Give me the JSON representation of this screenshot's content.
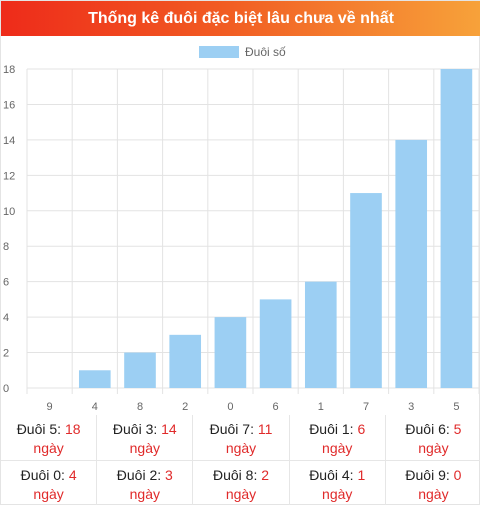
{
  "header": {
    "title": "Thống kê đuôi đặc biệt lâu chưa về nhất"
  },
  "colors": {
    "bar": "#9ccff3",
    "accent": "#e02a2a",
    "header_start": "#ee2b1a",
    "header_end": "#f7a23a"
  },
  "chart_data": {
    "type": "bar",
    "title": "",
    "categories": [
      "9",
      "4",
      "8",
      "2",
      "0",
      "6",
      "1",
      "7",
      "3",
      "5"
    ],
    "series": [
      {
        "name": "Đuôi số",
        "values": [
          0,
          1,
          2,
          3,
          4,
          5,
          6,
          11,
          14,
          18
        ]
      }
    ],
    "ylim": [
      0,
      18
    ],
    "yticks": [
      "0",
      "2",
      "4",
      "6",
      "8",
      "10",
      "12",
      "14",
      "16",
      "18"
    ],
    "grid": true,
    "legend": "top-center"
  },
  "stats": {
    "unit": "ngày",
    "rows": [
      [
        {
          "label": "Đuôi 5:",
          "value": "18"
        },
        {
          "label": "Đuôi 3:",
          "value": "14"
        },
        {
          "label": "Đuôi 7:",
          "value": "11"
        },
        {
          "label": "Đuôi 1:",
          "value": "6"
        },
        {
          "label": "Đuôi 6:",
          "value": "5"
        }
      ],
      [
        {
          "label": "Đuôi 0:",
          "value": "4"
        },
        {
          "label": "Đuôi 2:",
          "value": "3"
        },
        {
          "label": "Đuôi 8:",
          "value": "2"
        },
        {
          "label": "Đuôi 4:",
          "value": "1"
        },
        {
          "label": "Đuôi 9:",
          "value": "0"
        }
      ]
    ]
  }
}
